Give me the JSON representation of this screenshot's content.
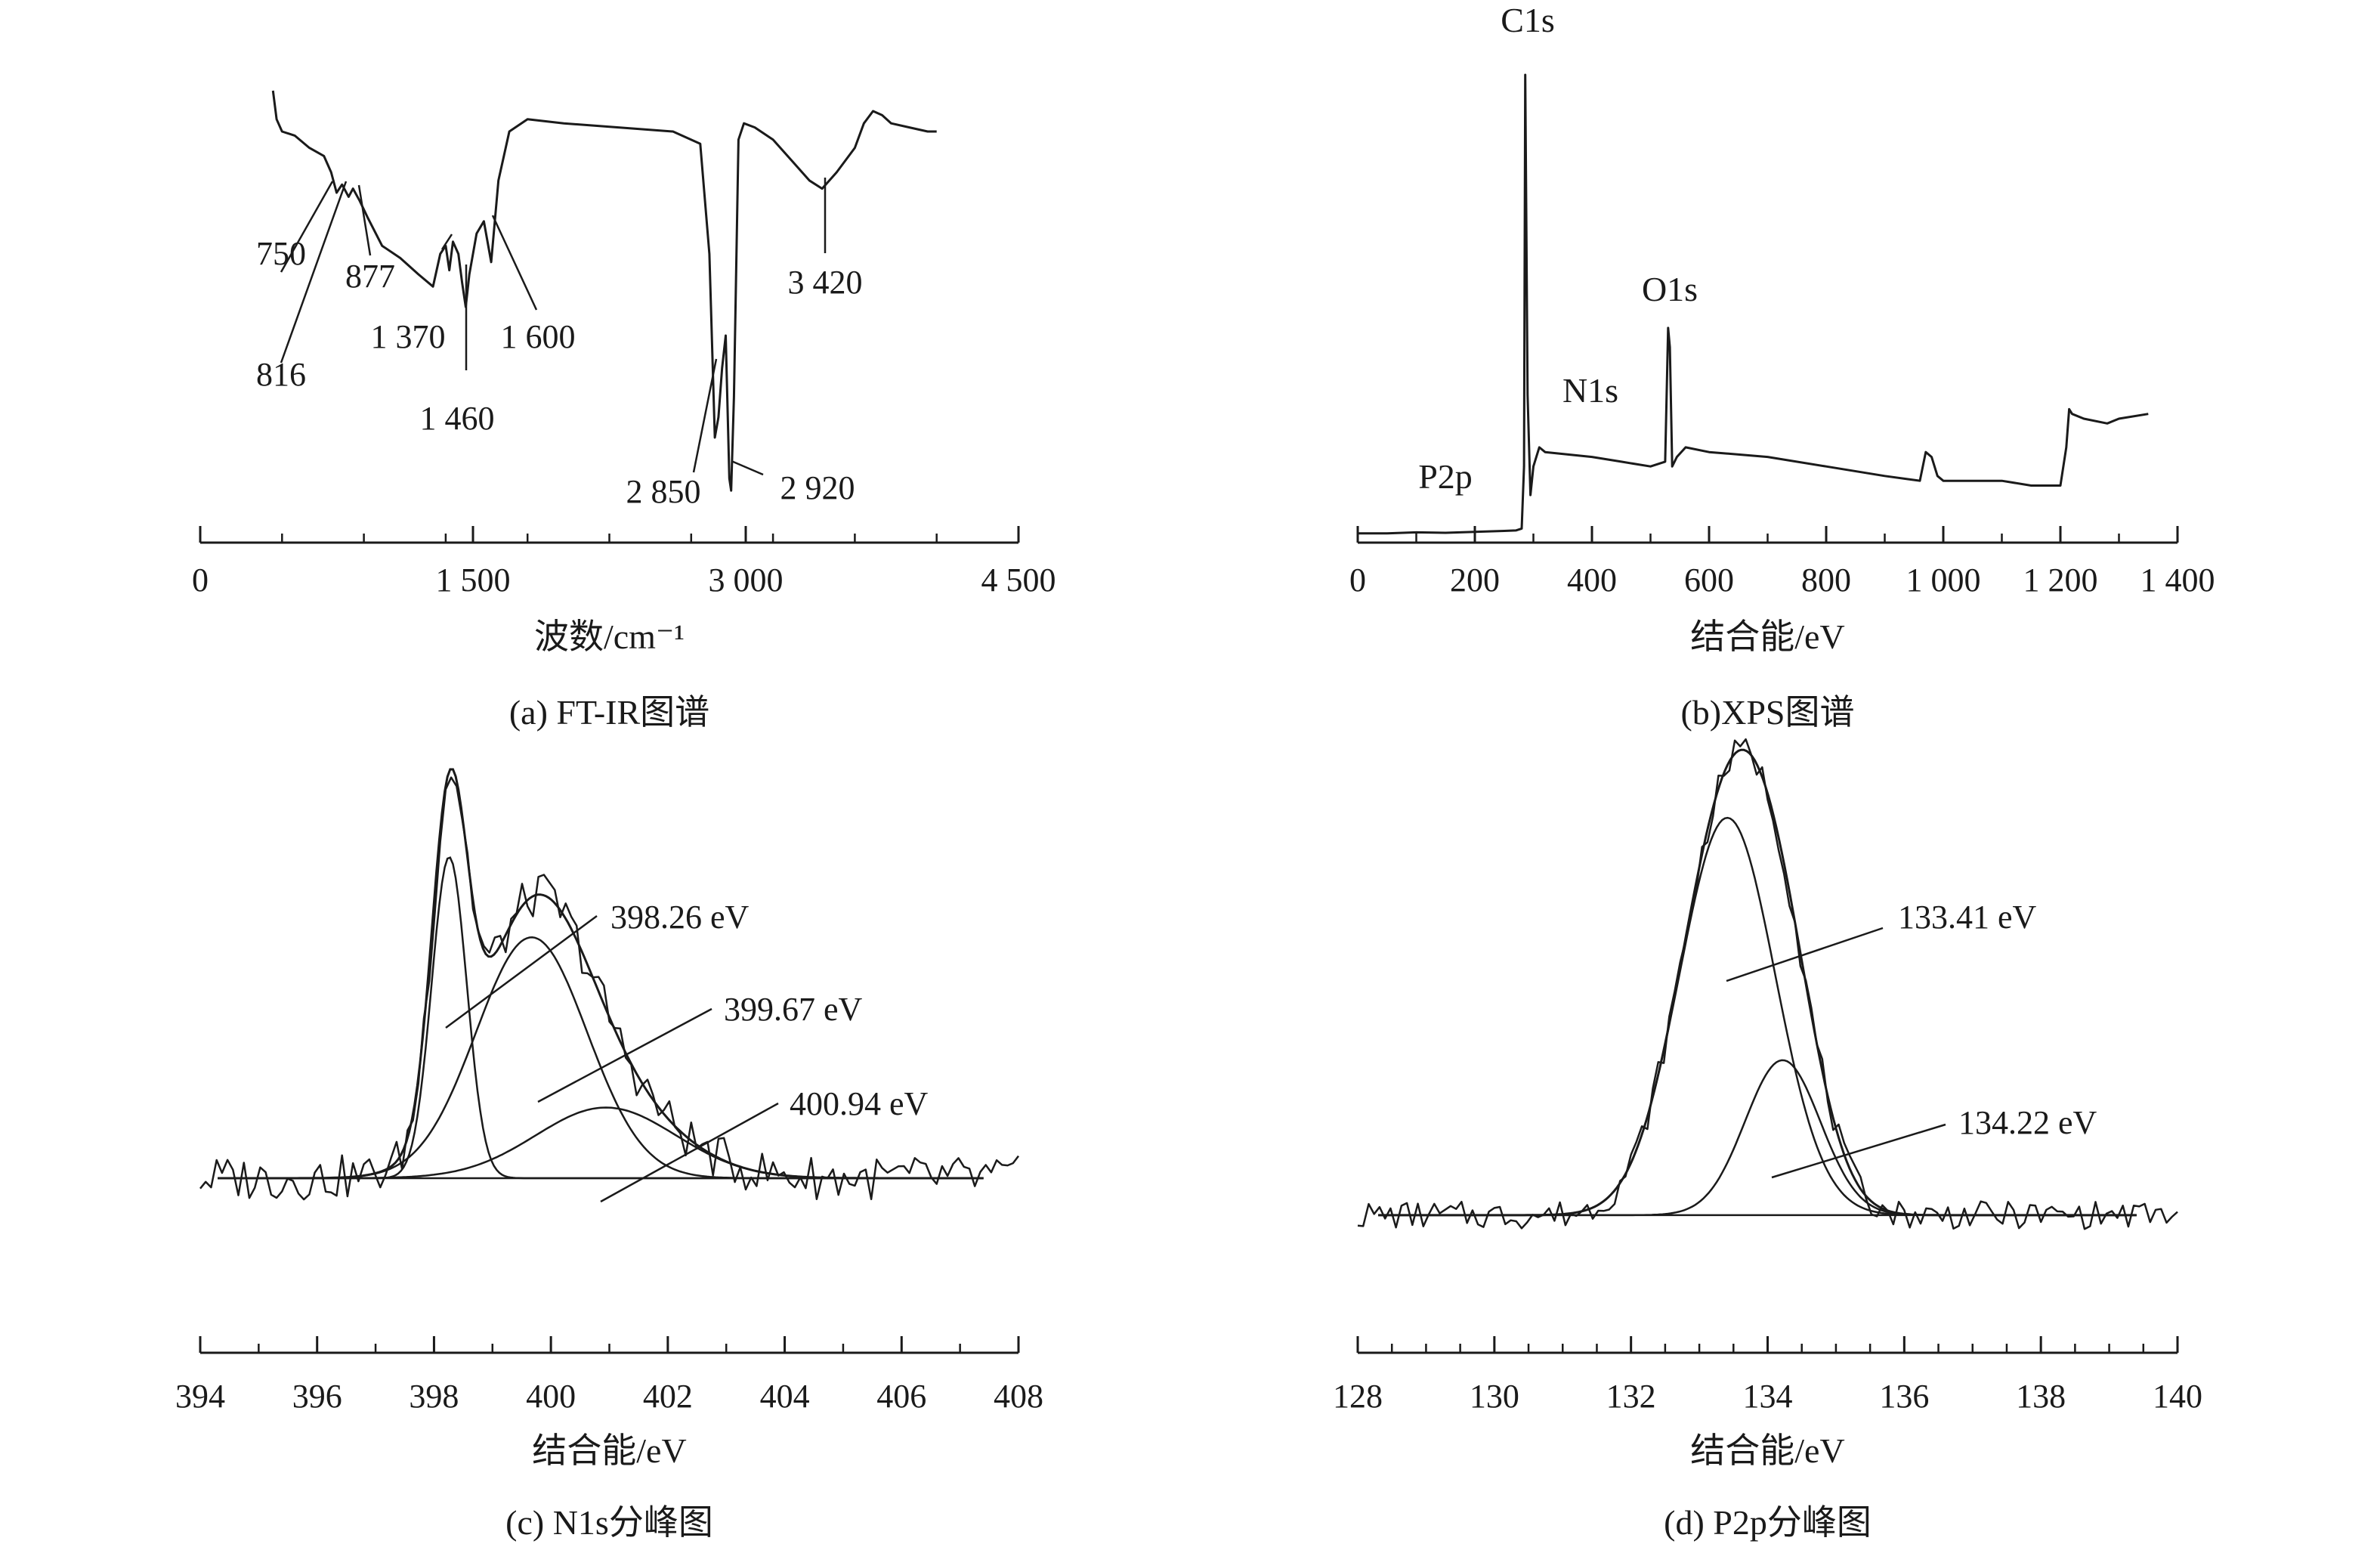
{
  "chart_data": [
    {
      "id": "a",
      "type": "line",
      "caption": "(a) FT-IR图谱",
      "xlabel": "波数/cm⁻¹",
      "xlim": [
        0,
        4500
      ],
      "ticks": [
        0,
        1500,
        3000,
        4500
      ],
      "tick_labels": [
        "0",
        "1 500",
        "3 000",
        "4 500"
      ],
      "y_axis_shown": false,
      "series": [
        {
          "x": [
            400,
            420,
            450,
            520,
            600,
            680,
            720,
            750,
            780,
            816,
            840,
            877,
            920,
            1000,
            1100,
            1200,
            1280,
            1320,
            1350,
            1370,
            1390,
            1420,
            1440,
            1460,
            1480,
            1520,
            1560,
            1600,
            1640,
            1700,
            1800,
            2000,
            2300,
            2600,
            2750,
            2800,
            2830,
            2850,
            2870,
            2890,
            2910,
            2920,
            2935,
            2960,
            2990,
            3050,
            3150,
            3250,
            3350,
            3420,
            3500,
            3600,
            3650,
            3700,
            3750,
            3800,
            3900,
            4000,
            4050
          ],
          "y": [
            100,
            93,
            90,
            89,
            86,
            84,
            80,
            75,
            77,
            74,
            76,
            73,
            69,
            62,
            59,
            55,
            52,
            60,
            62,
            56,
            63,
            60,
            53,
            47,
            55,
            65,
            68,
            58,
            78,
            90,
            93,
            92,
            91,
            90,
            87,
            60,
            15,
            20,
            32,
            40,
            5,
            2,
            25,
            88,
            92,
            91,
            88,
            83,
            78,
            76,
            80,
            86,
            92,
            95,
            94,
            92,
            91,
            90,
            90
          ]
        }
      ],
      "annotations": [
        {
          "text": "750",
          "x": 750
        },
        {
          "text": "816",
          "x": 816
        },
        {
          "text": "877",
          "x": 877
        },
        {
          "text": "1 370",
          "x": 1370
        },
        {
          "text": "1 460",
          "x": 1460
        },
        {
          "text": "1 600",
          "x": 1600
        },
        {
          "text": "2 850",
          "x": 2850
        },
        {
          "text": "2 920",
          "x": 2920
        },
        {
          "text": "3 420",
          "x": 3420
        }
      ]
    },
    {
      "id": "b",
      "type": "line",
      "caption": "(b)XPS图谱",
      "xlabel": "结合能/eV",
      "xlim": [
        0,
        1400
      ],
      "ticks": [
        0,
        200,
        400,
        600,
        800,
        1000,
        1200,
        1400
      ],
      "tick_labels": [
        "0",
        "200",
        "400",
        "600",
        "800",
        "1 000",
        "1 200",
        "1 400"
      ],
      "y_axis_shown": false,
      "series": [
        {
          "x": [
            0,
            50,
            100,
            150,
            200,
            250,
            270,
            280,
            284,
            286,
            290,
            295,
            300,
            310,
            320,
            400,
            450,
            500,
            525,
            530,
            533,
            537,
            545,
            560,
            600,
            700,
            800,
            900,
            960,
            970,
            980,
            990,
            1000,
            1100,
            1150,
            1200,
            1210,
            1215,
            1220,
            1240,
            1280,
            1300,
            1350
          ],
          "y": [
            1,
            1,
            1.2,
            1.1,
            1.3,
            1.5,
            1.6,
            2,
            15,
            97,
            30,
            9,
            15,
            19,
            18,
            17,
            16,
            15,
            16,
            44,
            40,
            15,
            17,
            19,
            18,
            17,
            15,
            13,
            12,
            18,
            17,
            13,
            12,
            12,
            11,
            11,
            19,
            27,
            26,
            25,
            24,
            25,
            26
          ]
        }
      ],
      "annotations": [
        {
          "text": "C1s",
          "x": 285
        },
        {
          "text": "O1s",
          "x": 532
        },
        {
          "text": "N1s",
          "x": 399
        },
        {
          "text": "P2p",
          "x": 133
        }
      ]
    },
    {
      "id": "c",
      "type": "line",
      "caption": "(c) N1s分峰图",
      "xlabel": "结合能/eV",
      "xlim": [
        394,
        408
      ],
      "ticks": [
        394,
        396,
        398,
        400,
        402,
        404,
        406,
        408
      ],
      "tick_labels": [
        "394",
        "396",
        "398",
        "400",
        "402",
        "404",
        "406",
        "408"
      ],
      "y_axis_shown": false,
      "baseline": 0,
      "peaks": [
        {
          "center": 398.26,
          "amplitude": 1.0,
          "sigma": 0.3
        },
        {
          "center": 399.67,
          "amplitude": 0.75,
          "sigma": 0.95
        },
        {
          "center": 400.94,
          "amplitude": 0.22,
          "sigma": 1.2
        }
      ],
      "raw_x_range": [
        394,
        408
      ],
      "series": [
        {
          "name": "",
          "role": "raw"
        },
        {
          "name": "",
          "role": "envelope"
        },
        {
          "name": "",
          "role": "component",
          "peak": 0
        },
        {
          "name": "",
          "role": "component",
          "peak": 1
        },
        {
          "name": "",
          "role": "component",
          "peak": 2
        },
        {
          "name": "",
          "role": "baseline"
        }
      ],
      "annotations": [
        {
          "text": "398.26 eV",
          "x": 398.26
        },
        {
          "text": "399.67 eV",
          "x": 399.67
        },
        {
          "text": "400.94 eV",
          "x": 400.94
        }
      ]
    },
    {
      "id": "d",
      "type": "line",
      "caption": "(d) P2p分峰图",
      "xlabel": "结合能/eV",
      "xlim": [
        128,
        140
      ],
      "ticks": [
        128,
        130,
        132,
        134,
        136,
        138,
        140
      ],
      "tick_labels": [
        "128",
        "130",
        "132",
        "134",
        "136",
        "138",
        "140"
      ],
      "y_axis_shown": false,
      "baseline": 0,
      "peaks": [
        {
          "center": 133.41,
          "amplitude": 1.0,
          "sigma": 0.7
        },
        {
          "center": 134.22,
          "amplitude": 0.39,
          "sigma": 0.55
        }
      ],
      "raw_x_range": [
        128,
        140
      ],
      "series": [
        {
          "name": "",
          "role": "raw"
        },
        {
          "name": "",
          "role": "envelope"
        },
        {
          "name": "",
          "role": "component",
          "peak": 0
        },
        {
          "name": "",
          "role": "component",
          "peak": 1
        },
        {
          "name": "",
          "role": "baseline"
        }
      ],
      "annotations": [
        {
          "text": "133.41 eV",
          "x": 133.41
        },
        {
          "text": "134.22 eV",
          "x": 134.22
        }
      ]
    }
  ]
}
